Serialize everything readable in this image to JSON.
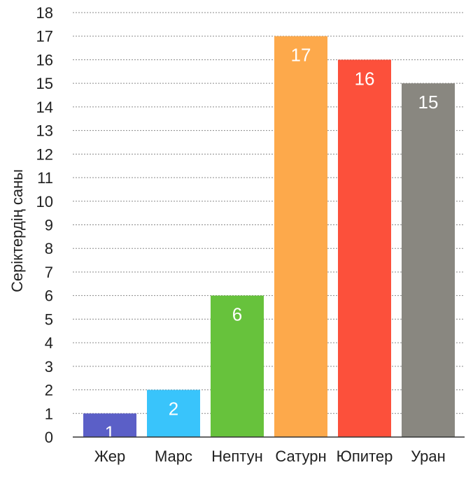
{
  "chart_data": {
    "type": "bar",
    "title": "",
    "xlabel": "",
    "ylabel": "Серіктердің саны",
    "ylim": [
      0,
      18
    ],
    "yticks": [
      0,
      1,
      2,
      3,
      4,
      5,
      6,
      7,
      8,
      9,
      10,
      11,
      12,
      13,
      14,
      15,
      16,
      17,
      18
    ],
    "grid": true,
    "categories": [
      "Жер",
      "Марс",
      "Нептун",
      "Сатурн",
      "Юпитер",
      "Уран"
    ],
    "values": [
      1,
      2,
      6,
      17,
      16,
      15
    ],
    "colors": [
      "#5b5fc7",
      "#39c4fb",
      "#67c23c",
      "#fda94b",
      "#fc503b",
      "#898780"
    ]
  }
}
